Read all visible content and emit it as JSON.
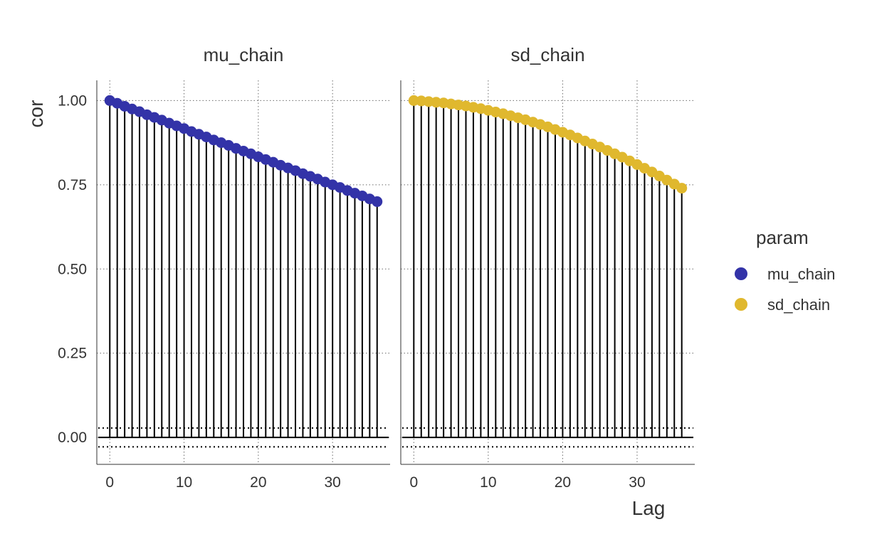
{
  "chart_data": {
    "type": "stem",
    "facets": [
      "mu_chain",
      "sd_chain"
    ],
    "xlabel": "Lag",
    "ylabel": "cor",
    "xlim": [
      -1.75,
      37.75
    ],
    "ylim": [
      -0.08,
      1.06
    ],
    "x_ticks": [
      0,
      10,
      20,
      30
    ],
    "y_ticks": [
      0.0,
      0.25,
      0.5,
      0.75,
      1.0
    ],
    "y_tick_labels": [
      "0.00",
      "0.25",
      "0.50",
      "0.75",
      "1.00"
    ],
    "confidence_band": [
      -0.028,
      0.028
    ],
    "grid": "dotted",
    "legend": {
      "title": "param",
      "position": "right"
    },
    "series": [
      {
        "name": "mu_chain",
        "color": "#3333a8",
        "x": [
          0,
          1,
          2,
          3,
          4,
          5,
          6,
          7,
          8,
          9,
          10,
          11,
          12,
          13,
          14,
          15,
          16,
          17,
          18,
          19,
          20,
          21,
          22,
          23,
          24,
          25,
          26,
          27,
          28,
          29,
          30,
          31,
          32,
          33,
          34,
          35,
          36
        ],
        "values": [
          1.0,
          0.992,
          0.983,
          0.975,
          0.967,
          0.958,
          0.95,
          0.942,
          0.933,
          0.925,
          0.917,
          0.908,
          0.9,
          0.892,
          0.883,
          0.875,
          0.867,
          0.858,
          0.85,
          0.842,
          0.833,
          0.825,
          0.817,
          0.808,
          0.8,
          0.792,
          0.783,
          0.775,
          0.767,
          0.758,
          0.75,
          0.742,
          0.733,
          0.725,
          0.717,
          0.708,
          0.7
        ]
      },
      {
        "name": "sd_chain",
        "color": "#e0b82e",
        "x": [
          0,
          1,
          2,
          3,
          4,
          5,
          6,
          7,
          8,
          9,
          10,
          11,
          12,
          13,
          14,
          15,
          16,
          17,
          18,
          19,
          20,
          21,
          22,
          23,
          24,
          25,
          26,
          27,
          28,
          29,
          30,
          31,
          32,
          33,
          34,
          35,
          36
        ],
        "values": [
          1.0,
          0.999,
          0.997,
          0.995,
          0.993,
          0.99,
          0.987,
          0.984,
          0.98,
          0.976,
          0.971,
          0.966,
          0.961,
          0.955,
          0.949,
          0.943,
          0.936,
          0.929,
          0.922,
          0.914,
          0.906,
          0.898,
          0.889,
          0.88,
          0.871,
          0.862,
          0.852,
          0.842,
          0.832,
          0.821,
          0.81,
          0.799,
          0.788,
          0.776,
          0.764,
          0.752,
          0.74
        ]
      }
    ]
  }
}
